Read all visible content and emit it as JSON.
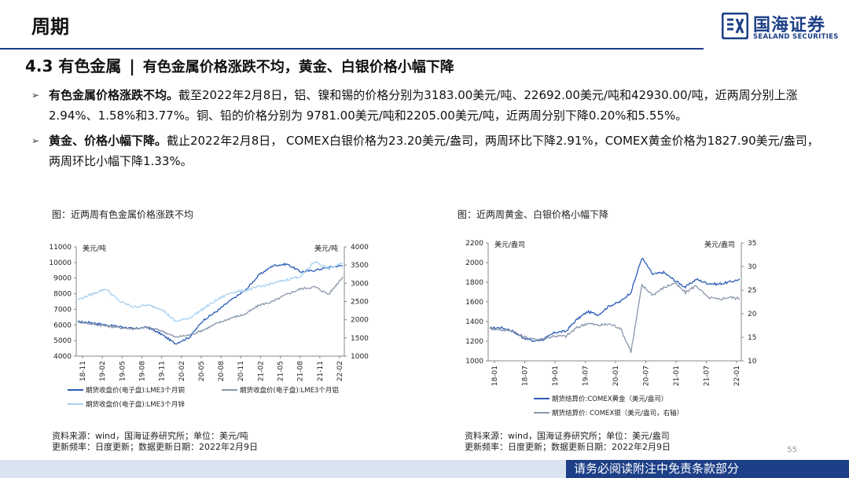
{
  "header": {
    "title": "周期"
  },
  "brand": {
    "name_cn": "国海证券",
    "name_en": "SEALAND SECURITIES"
  },
  "section": {
    "number_title": "4.3 有色金属",
    "separator": "|",
    "subtitle": "有色金属价格涨跌不均，黄金、白银价格小幅下降"
  },
  "bullets": [
    {
      "marker": "➢",
      "bold": "有色金属价格涨跌不均。",
      "text": "截至2022年2月8日，铝、镍和锡的价格分别为3183.00美元/吨、22692.00美元/吨和42930.00/吨，近两周分别上涨2.94%、1.58%和3.77%。铜、铅的价格分别为 9781.00美元/吨和2205.00美元/吨，近两周分别下降0.20%和5.55%。"
    },
    {
      "marker": "➢",
      "bold": "黄金、价格小幅下降。",
      "text": "截止2022年2月8日， COMEX白银价格为23.20美元/盎司，两周环比下降2.91%，COMEX黄金价格为1827.90美元/盎司，两周环比小幅下降1.33%。"
    }
  ],
  "figures": {
    "left": {
      "title": "图：近两周有色金属价格涨跌不均",
      "source_line1": "资料来源：wind，国海证券研究所；单位：美元/吨",
      "source_line2": "更新频率：日度更新；数据更新日期：2022年2月9日"
    },
    "right": {
      "title": "图：近两周黄金、白银价格小幅下降",
      "source_line1": "资料来源：wind，国海证券研究所；单位：美元/盎司",
      "source_line2": "更新频率：日度更新；数据更新日期：2022年2月9日"
    }
  },
  "page_number": "55",
  "footer": {
    "disclaimer": "请务必阅读附注中免责条款部分"
  },
  "colors": {
    "brand": "#1d3f87",
    "dark_blue": "#2a5cb8",
    "gray": "#8a97ad",
    "light_blue": "#a9d1f0"
  },
  "chart_data": [
    {
      "type": "line",
      "title": "",
      "left_axis_unit": "美元/吨",
      "right_axis_unit": "美元/吨",
      "ylim_left": [
        4000,
        11000
      ],
      "ylim_right": [
        1000,
        4000
      ],
      "yticks_left": [
        "11000",
        "10000",
        "9000",
        "8000",
        "7000",
        "6000",
        "5000",
        "4000"
      ],
      "yticks_right": [
        "4000",
        "3500",
        "3000",
        "2500",
        "2000",
        "1500",
        "1000"
      ],
      "x_labels": [
        "18-11",
        "19-02",
        "19-05",
        "19-08",
        "19-11",
        "20-02",
        "20-05",
        "20-08",
        "20-11",
        "21-02",
        "21-05",
        "21-08",
        "21-11",
        "22-02"
      ],
      "series": [
        {
          "name": "期货收盘价(电子盘):LME3个月铜",
          "axis": "left",
          "color": "#2a5cb8",
          "values": [
            6200,
            6150,
            6000,
            5900,
            5750,
            5850,
            5400,
            4800,
            5200,
            6300,
            6900,
            7600,
            8200,
            9200,
            9800,
            9900,
            9400,
            9500,
            9700,
            9800
          ]
        },
        {
          "name": "期货收盘价(电子盘):LME3个月铝",
          "axis": "right",
          "color": "#8a97ad",
          "values": [
            1950,
            1880,
            1830,
            1780,
            1750,
            1790,
            1700,
            1520,
            1580,
            1720,
            1900,
            2050,
            2150,
            2400,
            2500,
            2700,
            2850,
            2900,
            2700,
            3180
          ]
        },
        {
          "name": "期货收盘价(电子盘):LME3个月锌",
          "axis": "right",
          "color": "#a9d1f0",
          "values": [
            2550,
            2700,
            2850,
            2500,
            2350,
            2400,
            2300,
            1950,
            2050,
            2300,
            2550,
            2750,
            2800,
            2900,
            3000,
            3100,
            3200,
            3600,
            3400,
            3550
          ]
        }
      ]
    },
    {
      "type": "line",
      "title": "",
      "left_axis_unit": "美元/盎司",
      "right_axis_unit": "美元/盎司",
      "ylim_left": [
        1000,
        2200
      ],
      "ylim_right": [
        10,
        35
      ],
      "yticks_left": [
        "2200",
        "2000",
        "1800",
        "1600",
        "1400",
        "1200",
        "1000"
      ],
      "yticks_right": [
        "35",
        "30",
        "25",
        "20",
        "15",
        "10"
      ],
      "x_labels": [
        "18-01",
        "18-07",
        "19-01",
        "19-07",
        "20-01",
        "20-07",
        "21-01",
        "21-07",
        "22-01"
      ],
      "series": [
        {
          "name": "期货结算价:COMEX黄金（美元/盎司）",
          "axis": "left",
          "color": "#2a5cb8",
          "values": [
            1330,
            1340,
            1310,
            1240,
            1200,
            1220,
            1290,
            1300,
            1420,
            1500,
            1470,
            1560,
            1600,
            1700,
            2050,
            1880,
            1900,
            1820,
            1750,
            1830,
            1790,
            1780,
            1800,
            1830
          ]
        },
        {
          "name": "期货结算价: COMEX银（美元/盎司，右轴）",
          "axis": "right",
          "color": "#8a97ad",
          "values": [
            17.0,
            16.6,
            16.4,
            15.2,
            14.5,
            14.8,
            15.3,
            15.2,
            17.0,
            18.0,
            17.5,
            17.8,
            17.0,
            12.0,
            26.0,
            24.0,
            25.5,
            26.5,
            24.5,
            26.0,
            23.5,
            23.0,
            23.5,
            23.2
          ]
        }
      ]
    }
  ]
}
